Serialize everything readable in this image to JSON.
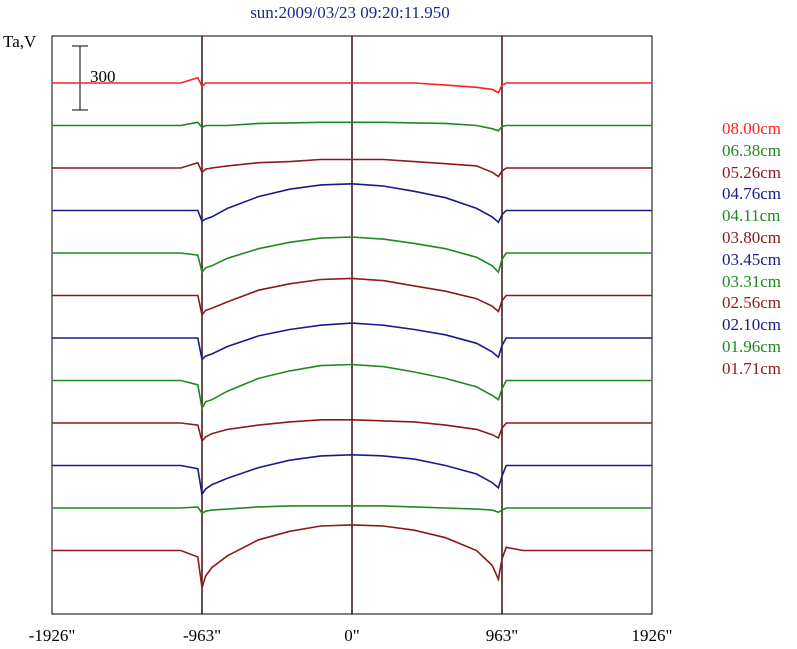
{
  "chart_data": {
    "type": "line",
    "title": "sun:2009/03/23 09:20:11.950",
    "ylabel": "Ta,V",
    "scale_bar_label": "300",
    "scale_bar_value": 300,
    "xlim": [
      -1926,
      1926
    ],
    "x_ticks": [
      {
        "value": -1926,
        "label": "-1926\""
      },
      {
        "value": -963,
        "label": "-963\""
      },
      {
        "value": 0,
        "label": "0\""
      },
      {
        "value": 963,
        "label": "963\""
      },
      {
        "value": 1926,
        "label": "1926\""
      }
    ],
    "vertical_lines": [
      -963,
      0,
      963
    ],
    "grid": false,
    "legend_position": "right",
    "profile_x": [
      -1926,
      -1100,
      -990,
      -963,
      -940,
      -900,
      -800,
      -600,
      -400,
      -200,
      0,
      200,
      400,
      600,
      800,
      900,
      940,
      963,
      990,
      1100,
      1926
    ],
    "series": [
      {
        "name": "08.00cm",
        "color": "#ff2020",
        "values": [
          0,
          0,
          25,
          -15,
          0,
          0,
          0,
          0,
          0,
          0,
          0,
          0,
          0,
          -10,
          -20,
          -30,
          -45,
          -10,
          0,
          0,
          0
        ]
      },
      {
        "name": "06.38cm",
        "color": "#1e8a1e",
        "values": [
          0,
          0,
          15,
          -10,
          0,
          0,
          0,
          10,
          12,
          15,
          15,
          15,
          12,
          10,
          0,
          -15,
          -25,
          -5,
          0,
          0,
          0
        ]
      },
      {
        "name": "05.26cm",
        "color": "#8b1a1a",
        "values": [
          0,
          0,
          25,
          -20,
          -5,
          0,
          10,
          25,
          30,
          40,
          40,
          40,
          30,
          20,
          10,
          -20,
          -40,
          -15,
          0,
          0,
          0
        ]
      },
      {
        "name": "04.76cm",
        "color": "#1a1a8b",
        "values": [
          0,
          0,
          0,
          -50,
          -40,
          -30,
          10,
          65,
          100,
          120,
          125,
          115,
          90,
          60,
          10,
          -30,
          -55,
          -20,
          0,
          0,
          0
        ]
      },
      {
        "name": "04.11cm",
        "color": "#1e8a1e",
        "values": [
          0,
          0,
          -10,
          -90,
          -70,
          -60,
          -25,
          20,
          50,
          70,
          75,
          65,
          45,
          20,
          -20,
          -60,
          -90,
          -30,
          0,
          0,
          0
        ]
      },
      {
        "name": "03.80cm",
        "color": "#8b1a1a",
        "values": [
          0,
          0,
          0,
          -90,
          -70,
          -60,
          -30,
          25,
          55,
          75,
          80,
          70,
          45,
          20,
          -15,
          -50,
          -75,
          -25,
          0,
          0,
          0
        ]
      },
      {
        "name": "03.45cm",
        "color": "#1a1a8b",
        "values": [
          0,
          0,
          0,
          -100,
          -85,
          -75,
          -40,
          10,
          40,
          60,
          70,
          60,
          40,
          15,
          -25,
          -65,
          -90,
          -35,
          0,
          0,
          0
        ]
      },
      {
        "name": "03.31cm",
        "color": "#1e8a1e",
        "values": [
          0,
          0,
          -20,
          -130,
          -100,
          -90,
          -50,
          10,
          45,
          70,
          75,
          65,
          40,
          10,
          -30,
          -70,
          -90,
          -40,
          0,
          0,
          0
        ]
      },
      {
        "name": "02.56cm",
        "color": "#8b1a1a",
        "values": [
          0,
          0,
          -10,
          -85,
          -65,
          -50,
          -30,
          -10,
          5,
          15,
          15,
          10,
          5,
          -10,
          -30,
          -55,
          -70,
          -25,
          0,
          0,
          0
        ]
      },
      {
        "name": "02.10cm",
        "color": "#1a1a8b",
        "values": [
          0,
          0,
          -15,
          -135,
          -110,
          -90,
          -60,
          -10,
          25,
          45,
          50,
          45,
          30,
          0,
          -40,
          -80,
          -105,
          -50,
          0,
          0,
          0
        ]
      },
      {
        "name": "01.96cm",
        "color": "#1e8a1e",
        "values": [
          0,
          0,
          5,
          -25,
          -15,
          -10,
          -5,
          5,
          10,
          10,
          10,
          10,
          5,
          0,
          -5,
          -10,
          -20,
          -10,
          0,
          0,
          0
        ]
      },
      {
        "name": "01.71cm",
        "color": "#8b1a1a",
        "values": [
          0,
          0,
          -30,
          -175,
          -120,
          -80,
          -25,
          50,
          90,
          115,
          120,
          115,
          95,
          60,
          0,
          -70,
          -135,
          -40,
          15,
          0,
          0
        ]
      }
    ]
  }
}
